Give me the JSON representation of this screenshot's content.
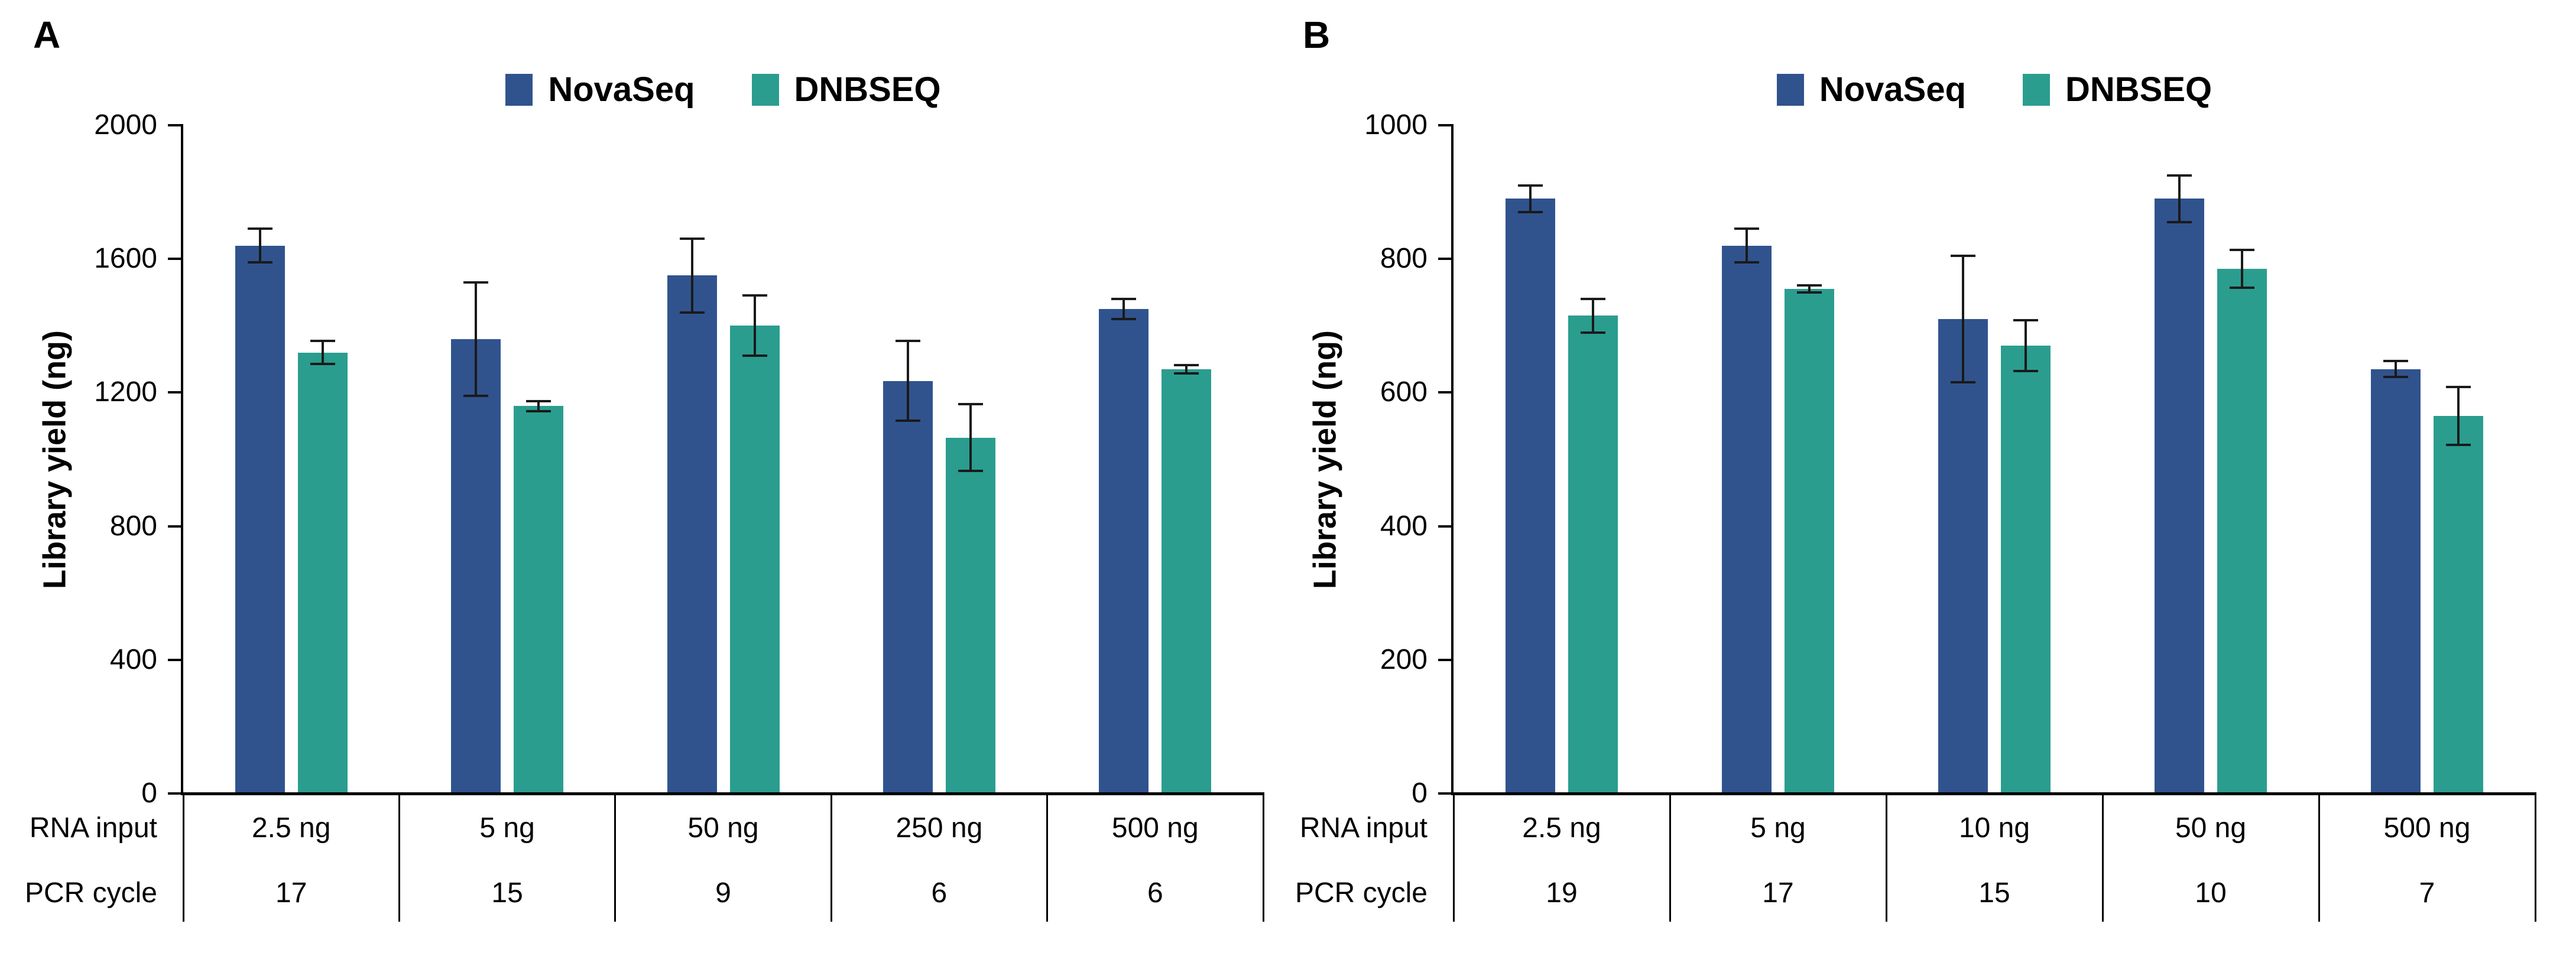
{
  "chart_data": [
    {
      "type": "bar",
      "panel": "A",
      "ylabel": "Library yield (ng)",
      "ylim": [
        0,
        2000
      ],
      "yticks": [
        0,
        400,
        800,
        1200,
        1600,
        2000
      ],
      "grid": false,
      "legend_position": "top",
      "x_row_headers": [
        "RNA input",
        "PCR cycle"
      ],
      "categories": [
        "2.5 ng",
        "5 ng",
        "50 ng",
        "250 ng",
        "500 ng"
      ],
      "pcr_cycles": [
        "17",
        "15",
        "9",
        "6",
        "6"
      ],
      "series": [
        {
          "name": "NovaSeq",
          "color": "#30538E",
          "values": [
            1640,
            1360,
            1550,
            1235,
            1450
          ],
          "errors": [
            50,
            170,
            110,
            120,
            30
          ]
        },
        {
          "name": "DNBSEQ",
          "color": "#2A9D8F",
          "values": [
            1320,
            1160,
            1400,
            1065,
            1270
          ],
          "errors": [
            35,
            15,
            90,
            100,
            12
          ]
        }
      ]
    },
    {
      "type": "bar",
      "panel": "B",
      "ylabel": "Library yield (ng)",
      "ylim": [
        0,
        1000
      ],
      "yticks": [
        0,
        200,
        400,
        600,
        800,
        1000
      ],
      "grid": false,
      "legend_position": "top",
      "x_row_headers": [
        "RNA input",
        "PCR cycle"
      ],
      "categories": [
        "2.5 ng",
        "5 ng",
        "10 ng",
        "50 ng",
        "500 ng"
      ],
      "pcr_cycles": [
        "19",
        "17",
        "15",
        "10",
        "7"
      ],
      "series": [
        {
          "name": "NovaSeq",
          "color": "#30538E",
          "values": [
            890,
            820,
            710,
            890,
            635
          ],
          "errors": [
            20,
            25,
            95,
            35,
            12
          ]
        },
        {
          "name": "DNBSEQ",
          "color": "#2A9D8F",
          "values": [
            715,
            755,
            670,
            785,
            565
          ],
          "errors": [
            25,
            5,
            38,
            28,
            43
          ]
        }
      ]
    }
  ]
}
